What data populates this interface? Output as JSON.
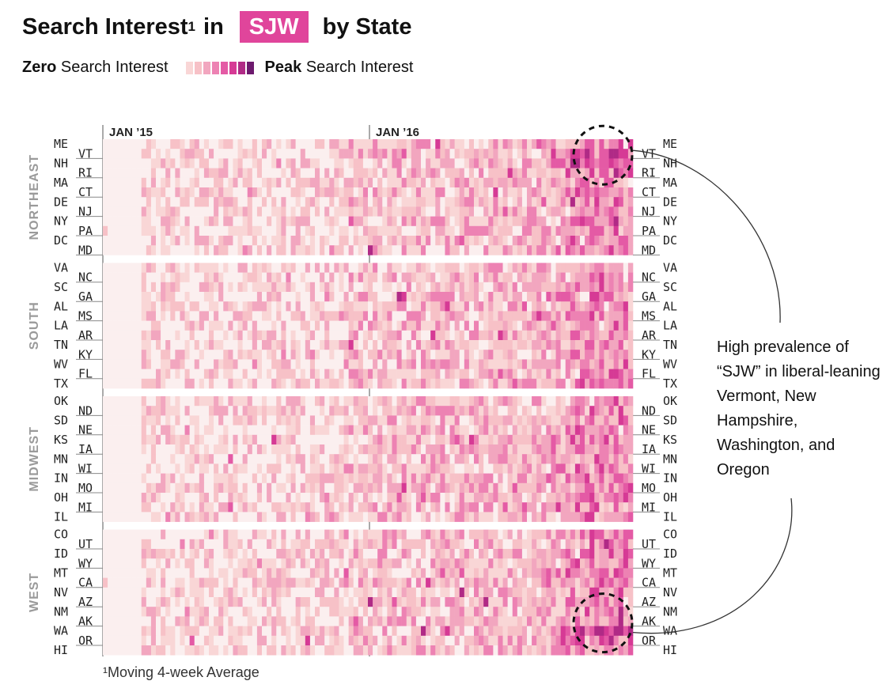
{
  "title": {
    "prefix": "Search Interest",
    "superscript": "1",
    "mid": "in",
    "keyword": "SJW",
    "suffix": "by State"
  },
  "legend": {
    "zero_bold": "Zero",
    "zero_rest": "Search Interest",
    "peak_bold": "Peak",
    "peak_rest": "Search Interest",
    "colors": [
      "#f9d6d6",
      "#f7c1c7",
      "#f2a6bf",
      "#ed82b3",
      "#e45aa5",
      "#d63a95",
      "#b02a86",
      "#6d1a6e"
    ]
  },
  "footnote": "¹Moving 4-week Average",
  "annotation": "High prevalence of “SJW” in liberal-leaning Vermont, New Hampshire, Washington, and Oregon",
  "chart_data": {
    "type": "heatmap",
    "x_ticks": [
      "JAN ’15",
      "JAN ’16"
    ],
    "value_scale": "0 = Zero Search Interest, 7 = Peak Search Interest",
    "regions": [
      {
        "name": "NORTHEAST",
        "states": [
          "ME",
          "VT",
          "NH",
          "RI",
          "MA",
          "CT",
          "DE",
          "NJ",
          "NY",
          "PA",
          "DC",
          "MD"
        ]
      },
      {
        "name": "SOUTH",
        "states": [
          "VA",
          "NC",
          "SC",
          "GA",
          "AL",
          "MS",
          "LA",
          "AR",
          "TN",
          "KY",
          "WV",
          "FL",
          "TX"
        ]
      },
      {
        "name": "MIDWEST",
        "states": [
          "OK",
          "ND",
          "SD",
          "NE",
          "KS",
          "IA",
          "MN",
          "WI",
          "IN",
          "MO",
          "OH",
          "MI",
          "IL"
        ]
      },
      {
        "name": "WEST",
        "states": [
          "CO",
          "UT",
          "ID",
          "WY",
          "MT",
          "CA",
          "NV",
          "AZ",
          "NM",
          "AK",
          "WA",
          "OR",
          "HI"
        ]
      }
    ],
    "highlighted_states": [
      "VT",
      "NH",
      "WA",
      "OR"
    ]
  }
}
